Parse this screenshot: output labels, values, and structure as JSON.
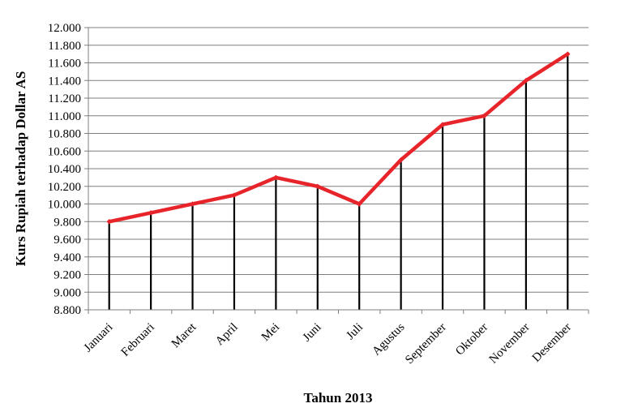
{
  "chart_data": {
    "type": "line",
    "title": "",
    "xlabel": "Tahun 2013",
    "ylabel": "Kurs Rupiah terhadap Dollar AS",
    "categories": [
      "Januari",
      "Februari",
      "Maret",
      "April",
      "Mei",
      "Juni",
      "Juli",
      "Agustus",
      "September",
      "Oktober",
      "November",
      "Desember"
    ],
    "series": [
      {
        "values": [
          9800,
          9900,
          10000,
          10100,
          10300,
          10200,
          10000,
          10500,
          10900,
          11000,
          11400,
          11700
        ]
      }
    ],
    "ylim": [
      8800,
      12000
    ],
    "ytick_step": 200,
    "ytick_labels": [
      "8.800",
      "9.000",
      "9.200",
      "9.400",
      "9.600",
      "9.800",
      "10.000",
      "10.200",
      "10.400",
      "10.600",
      "10.800",
      "11.000",
      "11.200",
      "11.400",
      "11.600",
      "11.800",
      "12.000"
    ],
    "grid": true,
    "legend": "none",
    "drop_lines": true,
    "colors": {
      "line": "#e8242b",
      "grid": "#7f7f7f",
      "drop_line": "#000000",
      "axis": "#7f7f7f"
    }
  }
}
